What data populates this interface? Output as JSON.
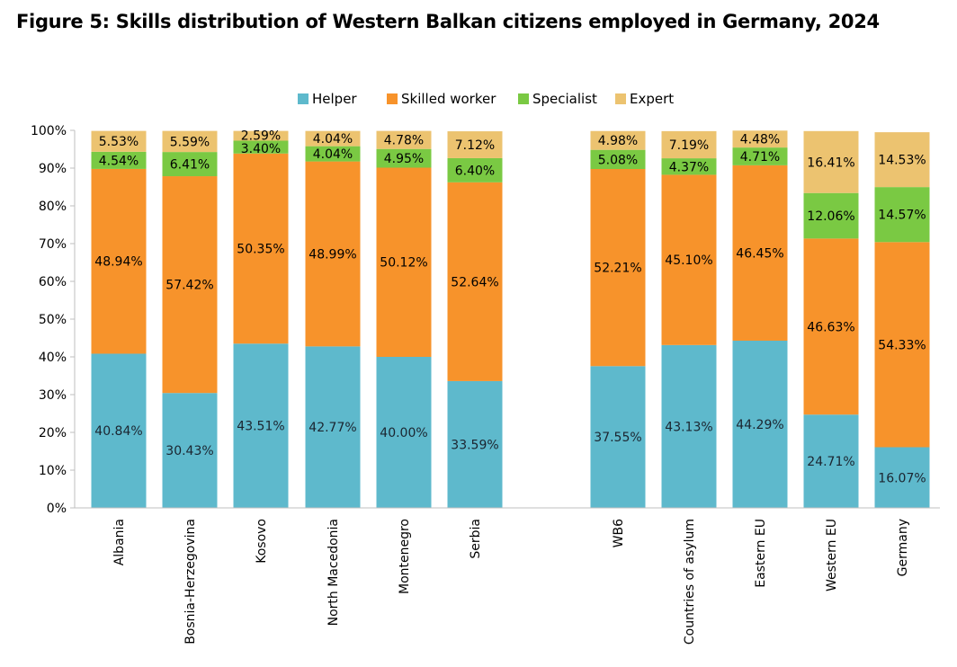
{
  "chart_data": {
    "type": "bar",
    "stacked": true,
    "title": "Figure 5: Skills distribution of Western Balkan citizens employed in Germany, 2024",
    "categories": [
      "Albania",
      "Bosnia-Herzegovina",
      "Kosovo",
      "North Macedonia",
      "Montenegro",
      "Serbia",
      "WB6",
      "Countries of asylum",
      "Eastern EU",
      "Western EU",
      "Germany"
    ],
    "series": [
      {
        "name": "Helper",
        "color": "#5eb9cc",
        "values": [
          40.84,
          30.43,
          43.51,
          42.77,
          40.0,
          33.59,
          37.55,
          43.13,
          44.29,
          24.71,
          16.07
        ],
        "labels": [
          "40.84%",
          "30.43%",
          "43.51%",
          "42.77%",
          "40.00%",
          "33.59%",
          "37.55%",
          "43.13%",
          "44.29%",
          "24.71%",
          "16.07%"
        ]
      },
      {
        "name": "Skilled worker",
        "color": "#f7932b",
        "values": [
          48.94,
          57.42,
          50.35,
          48.99,
          50.12,
          52.64,
          52.21,
          45.1,
          46.45,
          46.63,
          54.33
        ],
        "labels": [
          "48.94%",
          "57.42%",
          "50.35%",
          "48.99%",
          "50.12%",
          "52.64%",
          "52.21%",
          "45.10%",
          "46.45%",
          "46.63%",
          "54.33%"
        ]
      },
      {
        "name": "Specialist",
        "color": "#7ac943",
        "values": [
          4.54,
          6.41,
          3.4,
          4.04,
          4.95,
          6.4,
          5.08,
          4.37,
          4.71,
          12.06,
          14.57
        ],
        "labels": [
          "4.54%",
          "6.41%",
          "3.40%",
          "4.04%",
          "4.95%",
          "6.40%",
          "5.08%",
          "4.37%",
          "4.71%",
          "12.06%",
          "14.57%"
        ]
      },
      {
        "name": "Expert",
        "color": "#ecc370",
        "values": [
          5.53,
          5.59,
          2.59,
          4.04,
          4.78,
          7.12,
          4.98,
          7.19,
          4.48,
          16.41,
          14.53
        ],
        "labels": [
          "5.53%",
          "5.59%",
          "2.59%",
          "4.04%",
          "4.78%",
          "7.12%",
          "4.98%",
          "7.19%",
          "4.48%",
          "16.41%",
          "14.53%"
        ]
      }
    ],
    "y_ticks": [
      "0%",
      "10%",
      "20%",
      "30%",
      "40%",
      "50%",
      "60%",
      "70%",
      "80%",
      "90%",
      "100%"
    ],
    "ylim": [
      0,
      100
    ],
    "legend_position": "top-center",
    "grid": false
  }
}
